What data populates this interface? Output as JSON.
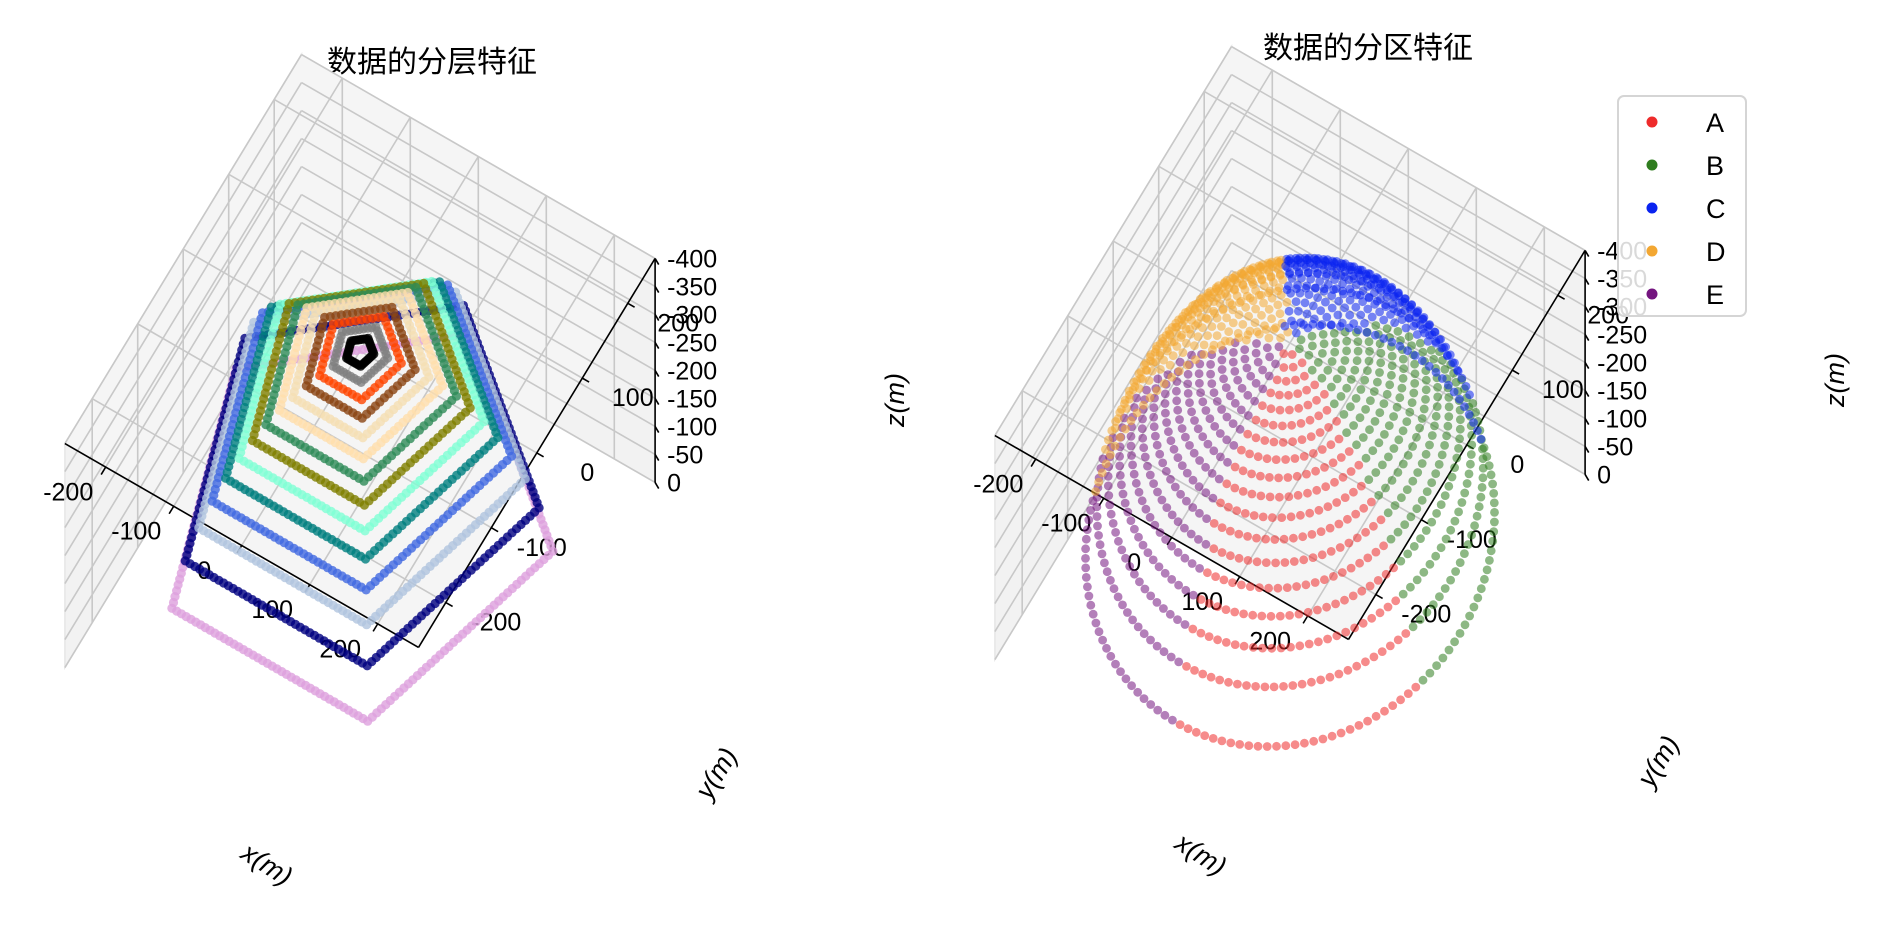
{
  "figure": {
    "background": "#ffffff",
    "pane_color": "#f2f2f2",
    "grid_color": "#c8c8c8"
  },
  "chart_data": [
    {
      "type": "scatter",
      "subtype": "3d",
      "title": "数据的分层特征",
      "xlabel": "x(m)",
      "ylabel": "y(m)",
      "zlabel": "z(m)",
      "xlim": [
        -260,
        260
      ],
      "ylim": [
        -260,
        260
      ],
      "zlim": [
        -400,
        0
      ],
      "x_ticks": [
        -200,
        -100,
        0,
        100,
        200
      ],
      "y_ticks": [
        -200,
        -100,
        0,
        100,
        200
      ],
      "z_ticks": [
        0,
        -50,
        -100,
        -150,
        -200,
        -250,
        -300,
        -350,
        -400
      ],
      "x_tick_labels": [
        "-200",
        "-100",
        "0",
        "100",
        "200"
      ],
      "y_tick_labels": [
        "-200",
        "-100",
        "0",
        "100",
        "200"
      ],
      "z_tick_labels": [
        "0",
        "-50",
        "-100",
        "-150",
        "-200",
        "-250",
        "-300",
        "-350",
        "-400"
      ],
      "grid": true,
      "shape": "hemispherical bowl, radius ≈ 250 m, depth ≈ 400 m, stratified by depth into pentagonal layers",
      "layer_colors": [
        "#000000",
        "#808080",
        "#ff4500",
        "#8b4513",
        "#f5deb3",
        "#ffdead",
        "#2e8b57",
        "#808000",
        "#7fffd4",
        "#008080",
        "#4169e1",
        "#b0c4de",
        "#000080",
        "#dda0dd"
      ]
    },
    {
      "type": "scatter",
      "subtype": "3d",
      "title": "数据的分区特征",
      "xlabel": "x(m)",
      "ylabel": "y(m)",
      "zlabel": "z(m)",
      "xlim": [
        -260,
        260
      ],
      "ylim": [
        -260,
        260
      ],
      "zlim": [
        -400,
        0
      ],
      "x_ticks": [
        -200,
        -100,
        0,
        100,
        200
      ],
      "y_ticks": [
        -200,
        -100,
        0,
        100,
        200
      ],
      "z_ticks": [
        0,
        -50,
        -100,
        -150,
        -200,
        -250,
        -300,
        -350,
        -400
      ],
      "x_tick_labels": [
        "-200",
        "-100",
        "0",
        "100",
        "200"
      ],
      "y_tick_labels": [
        "-200",
        "-100",
        "0",
        "100",
        "200"
      ],
      "z_tick_labels": [
        "0",
        "-50",
        "-100",
        "-150",
        "-200",
        "-250",
        "-300",
        "-350",
        "-400"
      ],
      "grid": true,
      "legend_position": "top-right",
      "shape": "hemispherical bowl, radius ≈ 250 m, depth ≈ 400 m, split into 5 angular sectors",
      "series": [
        {
          "name": "A",
          "color": "#ee2b2b",
          "angle_deg": [
            270,
            342
          ]
        },
        {
          "name": "B",
          "color": "#2f7d1f",
          "angle_deg": [
            342,
            414
          ]
        },
        {
          "name": "C",
          "color": "#0a23f0",
          "angle_deg": [
            54,
            126
          ]
        },
        {
          "name": "D",
          "color": "#f3a732",
          "angle_deg": [
            126,
            198
          ]
        },
        {
          "name": "E",
          "color": "#74157f",
          "angle_deg": [
            198,
            270
          ]
        }
      ]
    }
  ]
}
